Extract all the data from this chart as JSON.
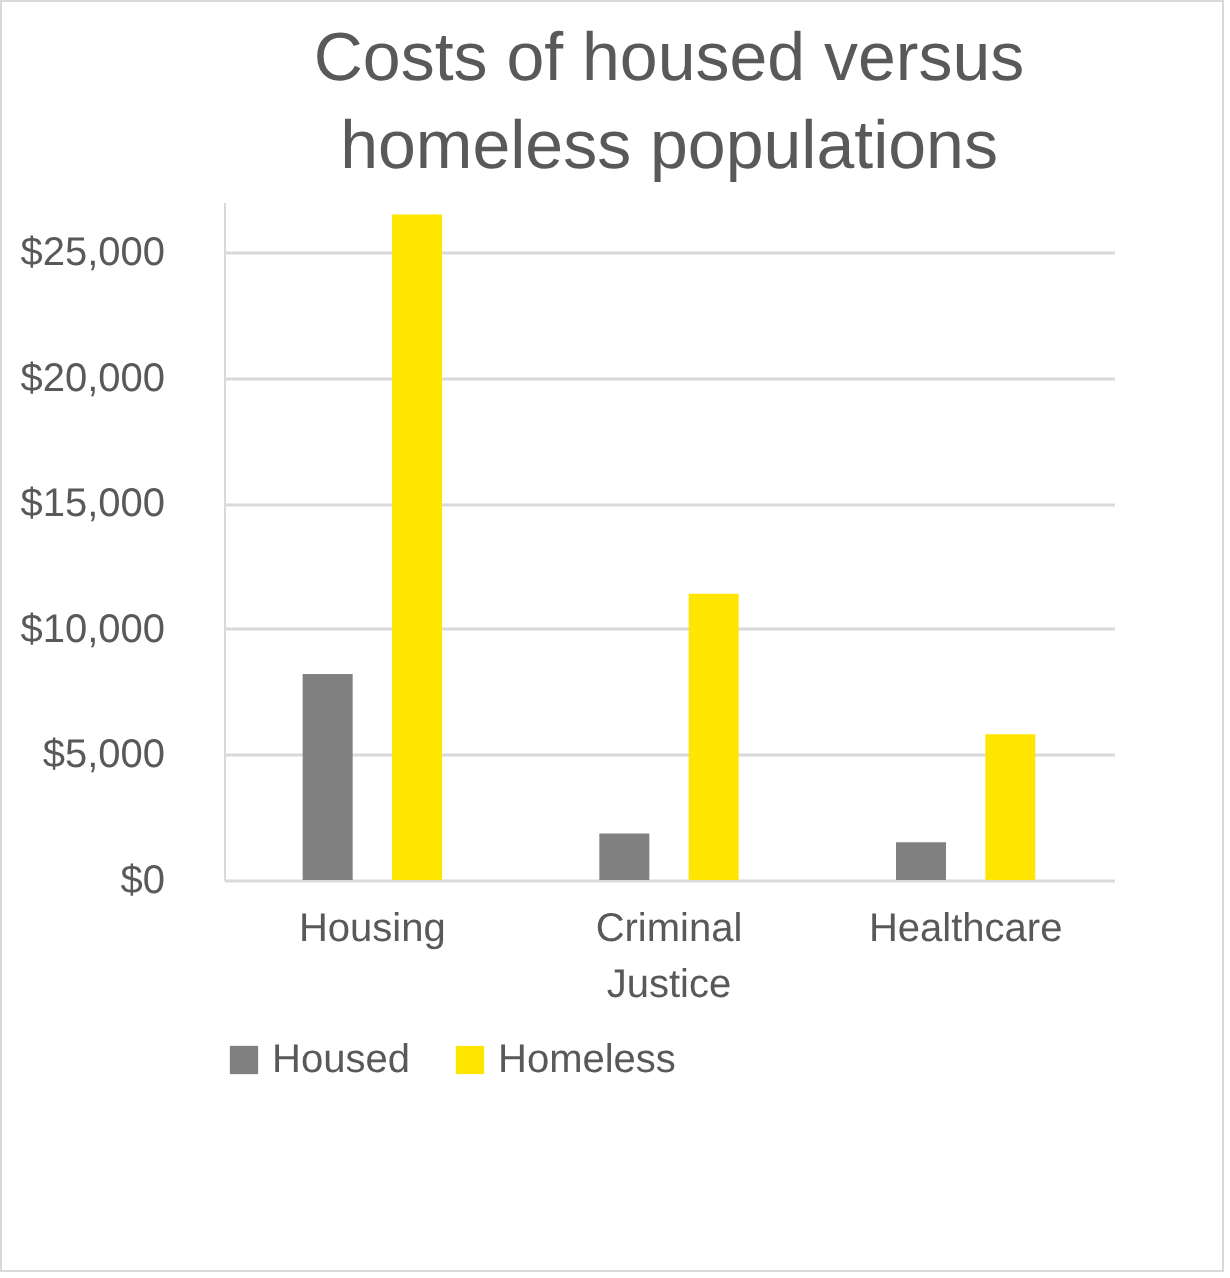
{
  "chart_data": {
    "type": "bar",
    "title": "Costs of housed versus homeless populations",
    "categories": [
      "Housing",
      "Criminal Justice",
      "Healthcare"
    ],
    "series": [
      {
        "name": "Housed",
        "color": "#808080",
        "values": [
          8200,
          1850,
          1500
        ]
      },
      {
        "name": "Homeless",
        "color": "#ffe600",
        "values": [
          26500,
          11400,
          5800
        ]
      }
    ],
    "ylim": [
      0,
      27000
    ],
    "yticks": [
      {
        "value": 0,
        "label": "$0"
      },
      {
        "value": 5000,
        "label": "$5,000"
      },
      {
        "value": 10000,
        "label": "$10,000"
      },
      {
        "value": 15000,
        "label": "$15,000"
      },
      {
        "value": 20000,
        "label": "$20,000"
      },
      {
        "value": 25000,
        "label": "$25,000"
      }
    ],
    "grid": true,
    "legend": "bottom"
  }
}
